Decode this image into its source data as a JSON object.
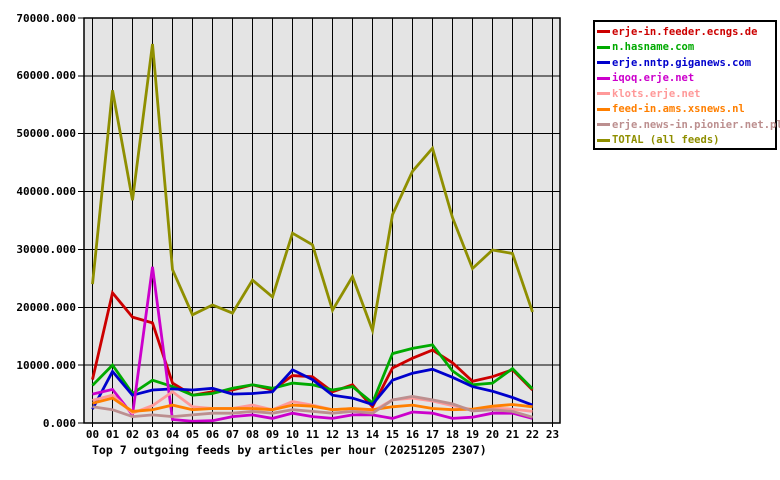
{
  "title_block": {
    "caption": "Top 7 outgoing feeds by articles per hour (20251205 2307)"
  },
  "colors": {
    "page_background": "#ffffff",
    "plot_background": "#e4e4e4",
    "grid": "#000000",
    "axis_text": "#000000",
    "legend_border": "#000000",
    "legend_background": "#ffffff"
  },
  "chart_data": {
    "type": "line",
    "title": "Top 7 outgoing feeds by articles per hour (20251205 2307)",
    "xlabel": "",
    "ylabel": "",
    "grid": true,
    "legend_position": "outside-top-right",
    "xlim_hours": [
      0,
      23
    ],
    "ylim": [
      0,
      70000
    ],
    "y_tick_labels": [
      "70000.000",
      "60000.000",
      "50000.000",
      "40000.000",
      "30000.000",
      "20000.000",
      "10000.000",
      "0.000"
    ],
    "y_tick_values": [
      70000,
      60000,
      50000,
      40000,
      30000,
      20000,
      10000,
      0
    ],
    "x_tick_labels": [
      "00",
      "01",
      "02",
      "03",
      "04",
      "05",
      "06",
      "07",
      "08",
      "09",
      "10",
      "11",
      "12",
      "13",
      "14",
      "15",
      "16",
      "17",
      "18",
      "19",
      "20",
      "21",
      "22",
      "23"
    ],
    "data_hours": [
      "00",
      "01",
      "02",
      "03",
      "04",
      "05",
      "06",
      "07",
      "08",
      "09",
      "10",
      "11",
      "12",
      "13",
      "14",
      "15",
      "16",
      "17",
      "18",
      "19",
      "20",
      "21",
      "22"
    ],
    "series": [
      {
        "name": "erje-in.feeder.ecngs.de",
        "color": "#cc0000",
        "values": [
          7500,
          22500,
          18300,
          17300,
          6900,
          4800,
          5400,
          5700,
          6600,
          5700,
          8200,
          8000,
          5400,
          6600,
          2800,
          9500,
          11200,
          12600,
          10400,
          7200,
          8000,
          9200,
          5700
        ]
      },
      {
        "name": "n.hasname.com",
        "color": "#00aa00",
        "values": [
          6500,
          10000,
          5100,
          7400,
          6300,
          4800,
          5100,
          6000,
          6600,
          6000,
          6900,
          6600,
          5700,
          6300,
          3500,
          12000,
          12900,
          13500,
          9000,
          6600,
          6900,
          9400,
          5900
        ]
      },
      {
        "name": "erje.nntp.giganews.com",
        "color": "#0000cc",
        "values": [
          2400,
          8900,
          4800,
          5700,
          5900,
          5700,
          6000,
          5000,
          5100,
          5400,
          9200,
          7500,
          4800,
          4300,
          3200,
          7400,
          8600,
          9300,
          7900,
          6300,
          5500,
          4400,
          3100
        ]
      },
      {
        "name": "iqoq.erje.net",
        "color": "#cc00cc",
        "values": [
          5000,
          5800,
          1400,
          27000,
          600,
          300,
          400,
          1100,
          1400,
          800,
          1700,
          1100,
          800,
          1400,
          1400,
          800,
          1900,
          1700,
          800,
          1000,
          1700,
          1700,
          800
        ]
      },
      {
        "name": "klots.erje.net",
        "color": "#ff9999",
        "values": [
          3900,
          4800,
          1700,
          3000,
          5400,
          2800,
          2500,
          2500,
          3100,
          2300,
          3700,
          3100,
          2300,
          2500,
          2000,
          4000,
          4300,
          3800,
          3000,
          2300,
          2600,
          2400,
          2000
        ]
      },
      {
        "name": "feed-in.ams.xsnews.nl",
        "color": "#ff7f00",
        "values": [
          3400,
          4300,
          2000,
          2300,
          3100,
          2300,
          2500,
          2500,
          2500,
          2300,
          3100,
          2900,
          2300,
          2500,
          2300,
          2800,
          3100,
          2500,
          2300,
          2400,
          2900,
          3200,
          2800
        ]
      },
      {
        "name": "erje.news-in.pionier.net.pl",
        "color": "#bc8f8f",
        "values": [
          2800,
          2300,
          1100,
          1400,
          1100,
          1400,
          1700,
          1700,
          2000,
          1700,
          2300,
          2000,
          1700,
          2000,
          1700,
          4000,
          4600,
          4000,
          3300,
          2100,
          2300,
          2000,
          1000
        ]
      },
      {
        "name": "TOTAL (all feeds)",
        "color": "#8f8f00",
        "values": [
          24000,
          57500,
          38500,
          65500,
          26500,
          18700,
          20400,
          19000,
          24700,
          21800,
          32800,
          30800,
          19500,
          25300,
          16000,
          36000,
          43500,
          47500,
          35500,
          26700,
          29900,
          29300,
          19200
        ]
      }
    ]
  }
}
